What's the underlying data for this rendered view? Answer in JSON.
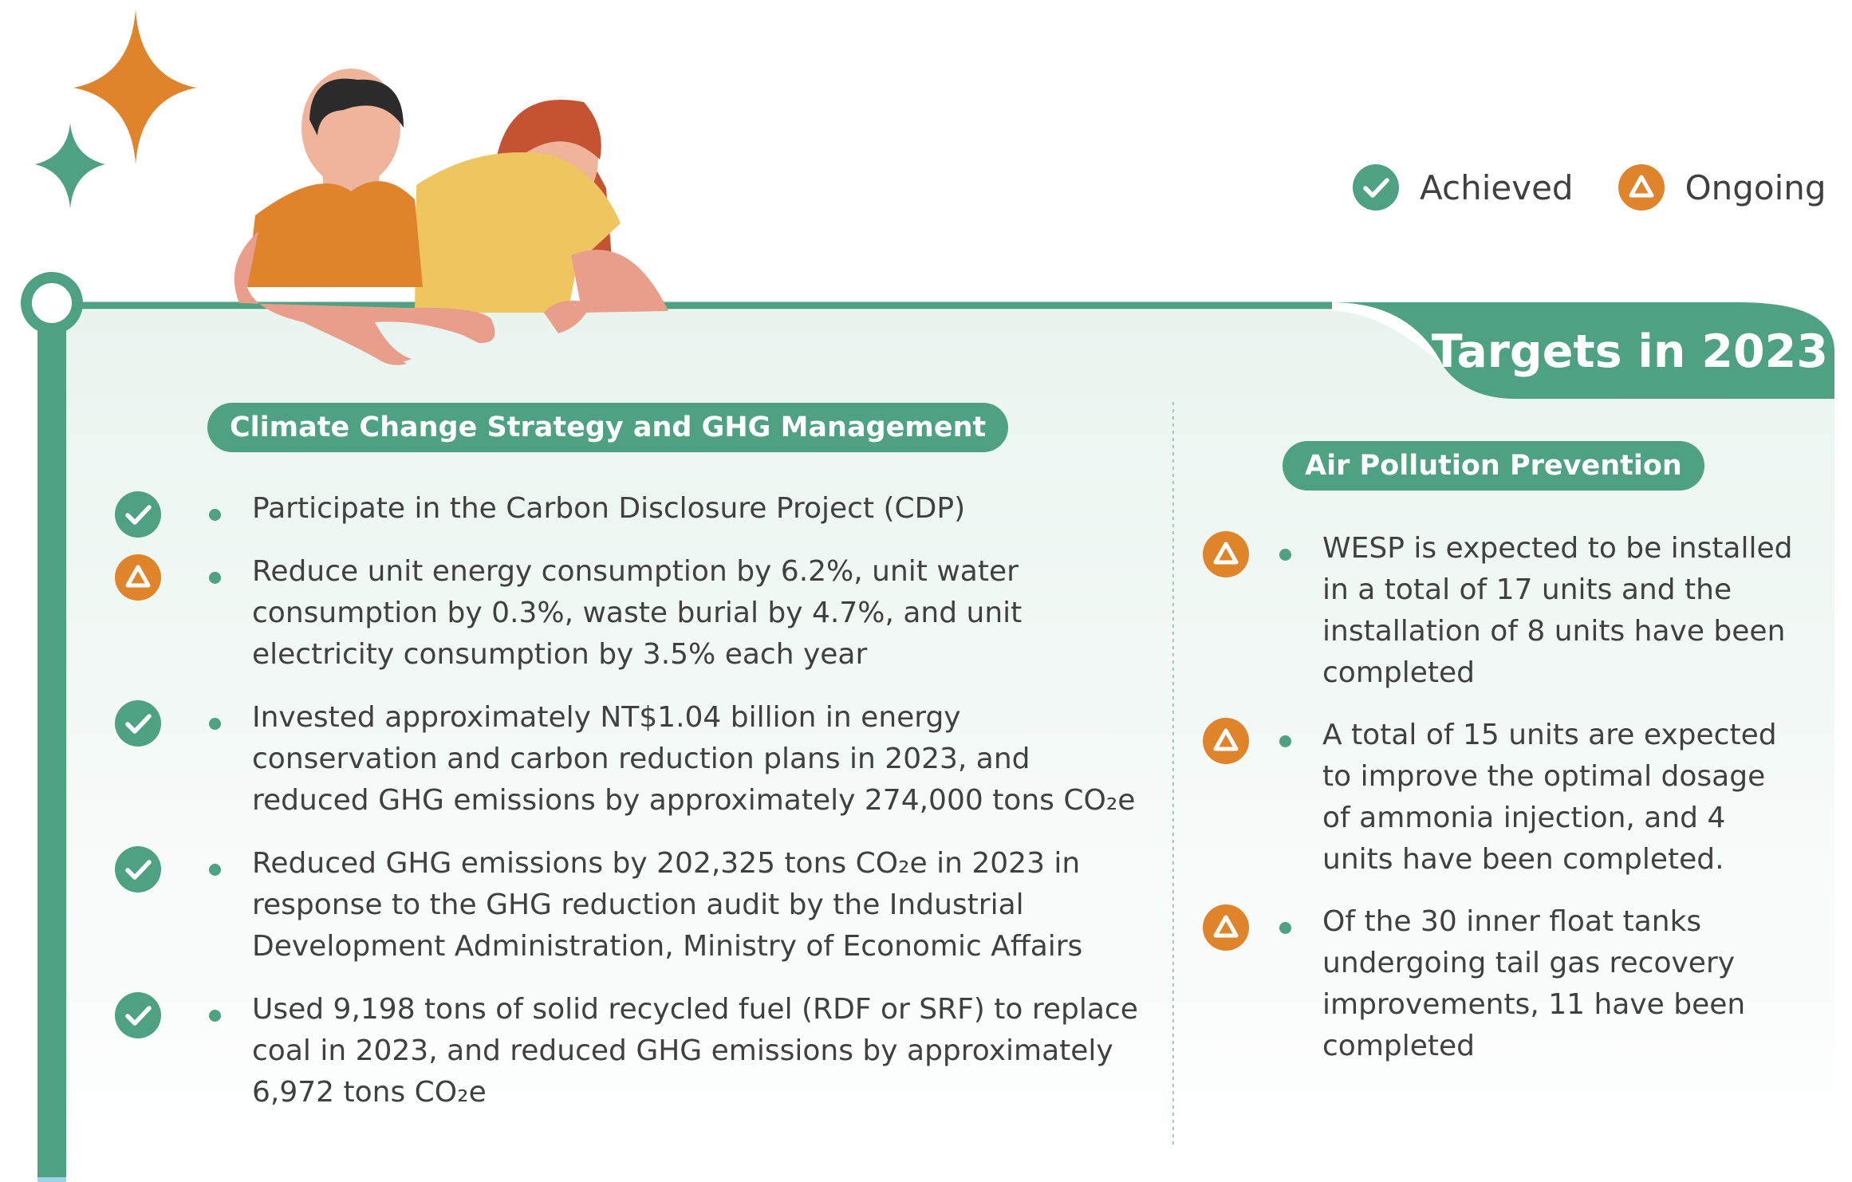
{
  "legend": {
    "achieved_label": "Achieved",
    "ongoing_label": "Ongoing"
  },
  "title": "Targets in 2023",
  "sections": {
    "climate": {
      "heading": "Climate Change Strategy and GHG Management",
      "items": [
        {
          "status": "achieved",
          "text": "Participate in the Carbon Disclosure Project (CDP)"
        },
        {
          "status": "ongoing",
          "text": "Reduce unit energy consumption by 6.2%, unit water consumption by 0.3%, waste burial by 4.7%, and unit electricity consumption by 3.5% each year"
        },
        {
          "status": "achieved",
          "text": "Invested approximately NT$1.04 billion in energy conservation and carbon reduction plans in 2023, and reduced GHG emissions by approximately 274,000 tons CO₂e"
        },
        {
          "status": "achieved",
          "text": "Reduced GHG emissions by 202,325 tons CO₂e in 2023 in response to the GHG reduction audit by the Industrial Development Administration, Ministry of Economic Affairs"
        },
        {
          "status": "achieved",
          "text": "Used 9,198 tons of solid recycled fuel (RDF or SRF) to replace coal in 2023, and reduced GHG emissions by approximately 6,972 tons CO₂e"
        }
      ]
    },
    "air": {
      "heading": "Air Pollution Prevention",
      "items": [
        {
          "status": "ongoing",
          "text": "WESP is expected to be installed in a total of 17 units and the installation of 8 units have been completed"
        },
        {
          "status": "ongoing",
          "text": "A total of 15 units are expected to improve the optimal dosage of ammonia injection, and 4 units have been completed."
        },
        {
          "status": "ongoing",
          "text": "Of the 30 inner float tanks undergoing tail gas recovery improvements, 11 have been completed"
        }
      ]
    }
  },
  "colors": {
    "brand_green": "#4ea181",
    "accent_orange": "#e0842c",
    "shirt_yellow": "#eec55f",
    "text": "#404040"
  }
}
